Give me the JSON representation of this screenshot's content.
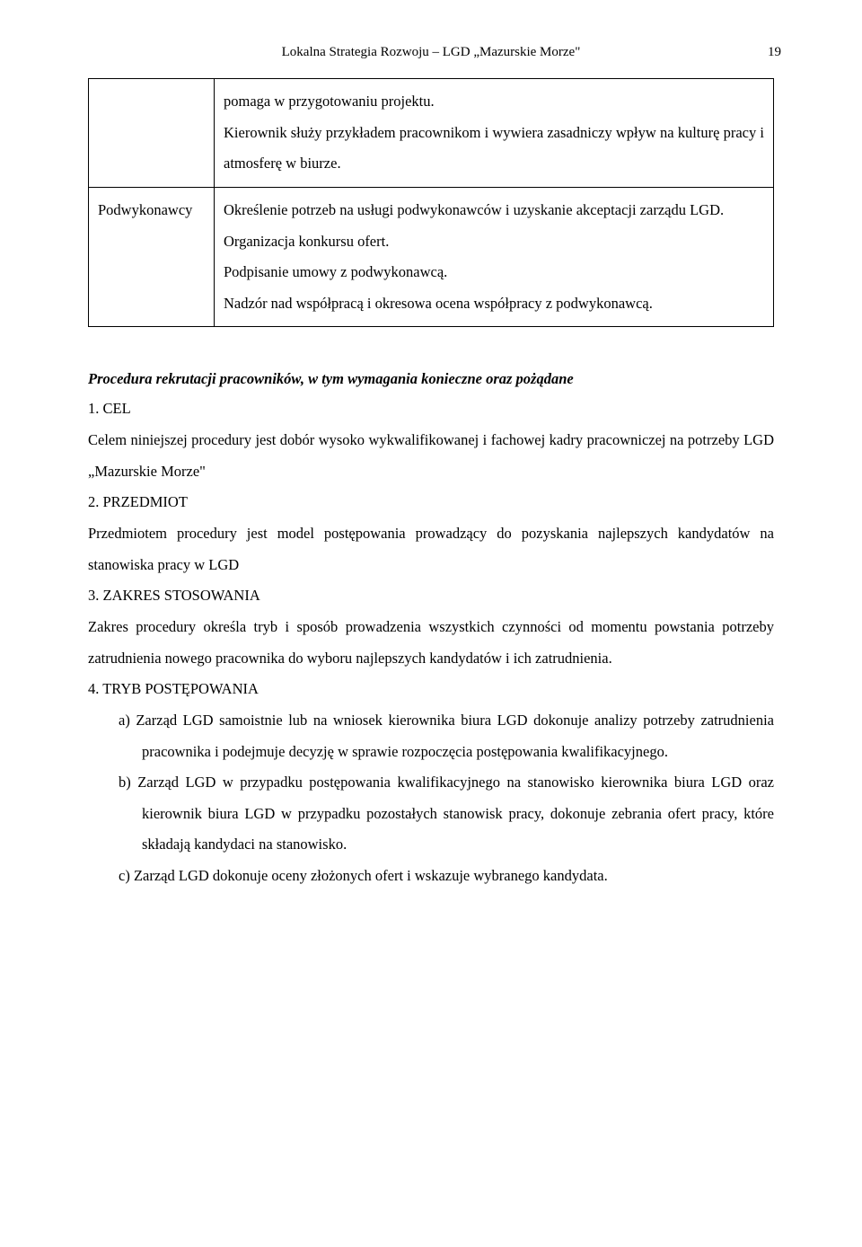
{
  "header": {
    "text": "Lokalna Strategia Rozwoju – LGD „Mazurskie Morze\"",
    "page_number": "19"
  },
  "table": {
    "row1": {
      "col1": "",
      "col2": "pomaga w przygotowaniu projektu.\nKierownik służy przykładem pracownikom i wywiera zasadniczy wpływ na kulturę pracy i atmosferę w biurze."
    },
    "row2": {
      "col1": "Podwykonawcy",
      "col2": "Określenie potrzeb na usługi podwykonawców i uzyskanie akceptacji zarządu LGD.\nOrganizacja konkursu ofert.\nPodpisanie umowy z podwykonawcą.\nNadzór nad współpracą i okresowa ocena współpracy z podwykonawcą."
    }
  },
  "section_title": "Procedura rekrutacji pracowników, w tym wymagania konieczne oraz pożądane",
  "s1_num": "1. CEL",
  "s1_body": "Celem niniejszej procedury jest dobór wysoko wykwalifikowanej i fachowej kadry pracowniczej na potrzeby LGD „Mazurskie Morze\"",
  "s2_num": "2. PRZEDMIOT",
  "s2_body": "Przedmiotem procedury jest model postępowania prowadzący do pozyskania najlepszych kandydatów na stanowiska pracy w LGD",
  "s3_num": "3. ZAKRES STOSOWANIA",
  "s3_body": "Zakres procedury określa tryb i sposób prowadzenia wszystkich czynności od momentu powstania potrzeby zatrudnienia nowego pracownika do wyboru najlepszych kandydatów i ich zatrudnienia.",
  "s4_num": "4. TRYB POSTĘPOWANIA",
  "s4_a": "a) Zarząd LGD samoistnie lub na wniosek kierownika biura LGD dokonuje analizy potrzeby zatrudnienia pracownika i podejmuje decyzję w sprawie rozpoczęcia postępowania kwalifikacyjnego.",
  "s4_b": "b) Zarząd LGD w przypadku postępowania kwalifikacyjnego na stanowisko kierownika biura LGD oraz kierownik biura LGD w przypadku pozostałych stanowisk pracy, dokonuje zebrania ofert pracy, które składają kandydaci na stanowisko.",
  "s4_c": "c) Zarząd LGD dokonuje oceny złożonych ofert i wskazuje wybranego kandydata."
}
